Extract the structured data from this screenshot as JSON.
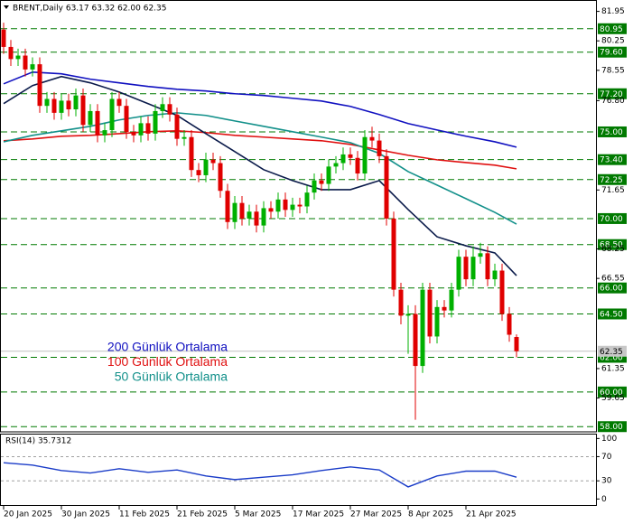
{
  "chart_data": [
    {
      "type": "candlestick",
      "title": "BRENT,Daily  63.17 63.32 62.00 62.35",
      "categories": [
        "20 Jan 2025",
        null,
        null,
        null,
        null,
        null,
        null,
        null,
        "30 Jan 2025",
        null,
        null,
        null,
        null,
        null,
        null,
        null,
        "11 Feb 2025",
        null,
        null,
        null,
        null,
        null,
        null,
        null,
        "21 Feb 2025",
        null,
        null,
        null,
        null,
        null,
        null,
        null,
        "5 Mar 2025",
        null,
        null,
        null,
        null,
        null,
        null,
        null,
        "17 Mar 2025",
        null,
        null,
        null,
        null,
        null,
        null,
        null,
        "27 Mar 2025",
        null,
        null,
        null,
        null,
        null,
        null,
        null,
        "8 Apr 2025",
        null,
        null,
        null,
        null,
        null,
        null,
        null,
        "21 Apr 2025",
        null,
        null,
        null,
        null,
        null,
        null,
        null
      ],
      "open": [
        80.9,
        79.9,
        79.2,
        79.4,
        78.6,
        78.9,
        76.5,
        76.9,
        76.1,
        76.8,
        76.3,
        77.1,
        75.4,
        76.2,
        74.8,
        75.1,
        76.9,
        76.5,
        75.0,
        74.8,
        75.5,
        74.9,
        76.2,
        76.6,
        76.0,
        74.6,
        74.7,
        72.8,
        72.5,
        73.4,
        73.2,
        71.6,
        69.8,
        70.9,
        70.0,
        70.4,
        69.6,
        70.6,
        70.4,
        71.1,
        70.5,
        70.8,
        70.7,
        71.5,
        72.2,
        72.0,
        73.0,
        73.2,
        73.7,
        73.5,
        72.6,
        74.7,
        74.5,
        73.6,
        70.0,
        65.9,
        64.4,
        64.5,
        61.5,
        65.9,
        63.2,
        64.9,
        64.7,
        65.9,
        67.8,
        66.5,
        67.8,
        68.0,
        66.5,
        67.0,
        64.5,
        63.17
      ],
      "high": [
        81.3,
        80.3,
        79.8,
        79.8,
        79.3,
        79.3,
        77.3,
        77.3,
        77.2,
        77.2,
        77.5,
        77.5,
        76.6,
        76.6,
        75.5,
        77.3,
        77.3,
        76.9,
        75.4,
        75.9,
        75.9,
        76.6,
        77.0,
        77.0,
        76.4,
        75.1,
        75.1,
        73.2,
        73.8,
        73.8,
        73.6,
        72.0,
        71.3,
        71.3,
        70.8,
        70.8,
        71.0,
        71.0,
        71.5,
        71.5,
        71.2,
        71.2,
        71.9,
        72.6,
        72.6,
        73.4,
        73.6,
        74.1,
        74.1,
        73.9,
        75.1,
        75.3,
        74.9,
        74.0,
        70.4,
        66.3,
        65.0,
        65.0,
        66.3,
        66.3,
        65.3,
        65.3,
        66.3,
        68.2,
        68.2,
        68.4,
        68.6,
        68.4,
        67.4,
        67.4,
        64.9,
        63.32
      ],
      "low": [
        79.5,
        78.8,
        78.8,
        78.2,
        78.2,
        76.1,
        76.1,
        75.7,
        75.7,
        75.9,
        75.9,
        75.0,
        75.0,
        74.4,
        74.4,
        74.7,
        76.1,
        74.6,
        74.4,
        74.4,
        74.5,
        74.5,
        75.8,
        75.6,
        74.2,
        74.2,
        72.4,
        72.1,
        72.1,
        72.8,
        71.2,
        69.4,
        69.4,
        69.6,
        69.6,
        69.2,
        69.2,
        70.0,
        70.0,
        70.1,
        70.1,
        70.3,
        70.3,
        71.1,
        71.6,
        71.6,
        72.6,
        72.8,
        73.1,
        72.2,
        72.2,
        74.1,
        73.2,
        69.6,
        65.5,
        63.9,
        62.2,
        58.4,
        61.1,
        62.8,
        62.8,
        64.3,
        64.3,
        65.5,
        66.1,
        66.1,
        67.4,
        66.1,
        66.1,
        64.1,
        62.9,
        62.0
      ],
      "close": [
        79.9,
        79.2,
        79.4,
        78.6,
        78.9,
        76.5,
        76.9,
        76.1,
        76.8,
        76.3,
        77.1,
        75.4,
        76.2,
        74.8,
        75.1,
        76.9,
        76.5,
        75.0,
        74.8,
        75.5,
        74.9,
        76.2,
        76.6,
        76.0,
        74.6,
        74.7,
        72.8,
        72.5,
        73.4,
        73.2,
        71.6,
        69.8,
        70.9,
        70.0,
        70.4,
        69.6,
        70.6,
        70.4,
        71.1,
        70.5,
        70.8,
        70.7,
        71.5,
        72.2,
        72.0,
        73.0,
        73.2,
        73.7,
        73.5,
        72.6,
        74.7,
        74.5,
        73.6,
        70.0,
        65.9,
        64.4,
        64.5,
        61.5,
        65.9,
        63.2,
        64.9,
        64.7,
        65.9,
        67.8,
        66.5,
        67.8,
        68.0,
        66.5,
        67.0,
        64.5,
        63.3,
        62.35
      ],
      "up_color": "#00b000",
      "down_color": "#e00000",
      "ylim": [
        57.7,
        82.45
      ],
      "yticks": [
        81.95,
        80.25,
        78.55,
        {
          "value": 76.8,
          "label": "76.80"
        },
        71.65,
        68.25,
        66.55,
        61.35,
        59.65
      ],
      "levels": [
        80.95,
        {
          "value": 79.6,
          "label": "79.60"
        },
        {
          "value": 77.2,
          "label": "77.20"
        },
        {
          "value": 75,
          "label": "75.00"
        },
        {
          "value": 73.4,
          "label": "73.40"
        },
        72.25,
        {
          "value": 70,
          "label": "70.00"
        },
        {
          "value": 68.5,
          "label": "68.50"
        },
        {
          "value": 66,
          "label": "66.00"
        },
        {
          "value": 64.5,
          "label": "64.50"
        },
        {
          "value": 62,
          "label": "62.00"
        },
        {
          "value": 60,
          "label": "60.00"
        },
        {
          "value": 58,
          "label": "58.00"
        }
      ],
      "level_color": "#007a00",
      "current_price": 62.35,
      "series": [
        {
          "name": "200 Günlük Ortalama",
          "color": "#1010c0",
          "x": [
            0,
            4,
            8,
            12,
            16,
            20,
            24,
            28,
            32,
            36,
            40,
            44,
            48,
            52,
            56,
            60,
            64,
            68,
            71
          ],
          "values": [
            77.77,
            78.45,
            78.35,
            78.04,
            77.83,
            77.62,
            77.46,
            77.36,
            77.2,
            77.1,
            76.94,
            76.78,
            76.47,
            76.0,
            75.48,
            75.11,
            74.75,
            74.43,
            74.12
          ]
        },
        {
          "name": "100 Günlük Ortalama",
          "color": "#e01010",
          "x": [
            0,
            4,
            8,
            12,
            16,
            20,
            24,
            28,
            32,
            36,
            40,
            44,
            48,
            52,
            56,
            60,
            64,
            68,
            71
          ],
          "values": [
            74.49,
            74.59,
            74.75,
            74.8,
            74.9,
            75.01,
            75.06,
            74.96,
            74.8,
            74.7,
            74.59,
            74.49,
            74.28,
            73.96,
            73.65,
            73.39,
            73.23,
            73.08,
            72.87
          ]
        },
        {
          "name": "50 Günlük Ortalama",
          "color": "#12908a",
          "x": [
            0,
            4,
            8,
            12,
            16,
            20,
            24,
            28,
            32,
            36,
            40,
            44,
            48,
            52,
            56,
            60,
            64,
            68,
            71
          ],
          "values": [
            74.43,
            74.8,
            75.06,
            75.32,
            75.69,
            75.95,
            76.1,
            75.95,
            75.63,
            75.32,
            75.01,
            74.7,
            74.38,
            73.76,
            72.71,
            71.93,
            71.15,
            70.36,
            69.68
          ]
        },
        {
          "color": "#0a1a4a",
          "x": [
            0,
            4,
            8,
            12,
            16,
            20,
            24,
            28,
            32,
            36,
            40,
            44,
            48,
            52,
            56,
            60,
            64,
            68,
            71
          ],
          "values": [
            76.63,
            77.67,
            78.19,
            77.83,
            77.3,
            76.63,
            75.95,
            74.9,
            73.86,
            72.82,
            72.19,
            71.67,
            71.67,
            72.19,
            70.52,
            68.95,
            68.43,
            68.02,
            66.71
          ]
        }
      ]
    },
    {
      "type": "line",
      "title": "RSI(14) 35.7312",
      "color": "#1a3cc8",
      "x": [
        0,
        4,
        8,
        12,
        16,
        20,
        24,
        28,
        32,
        36,
        40,
        44,
        48,
        52,
        56,
        60,
        64,
        68,
        71
      ],
      "values": [
        60,
        56,
        47,
        43,
        50,
        44,
        48,
        38,
        32,
        36,
        40,
        47,
        53,
        48,
        20,
        38,
        46,
        46,
        36
      ],
      "ylim": [
        -10,
        108
      ],
      "yticks": [
        100,
        70,
        30,
        0
      ],
      "levels": [
        70,
        30
      ]
    }
  ]
}
